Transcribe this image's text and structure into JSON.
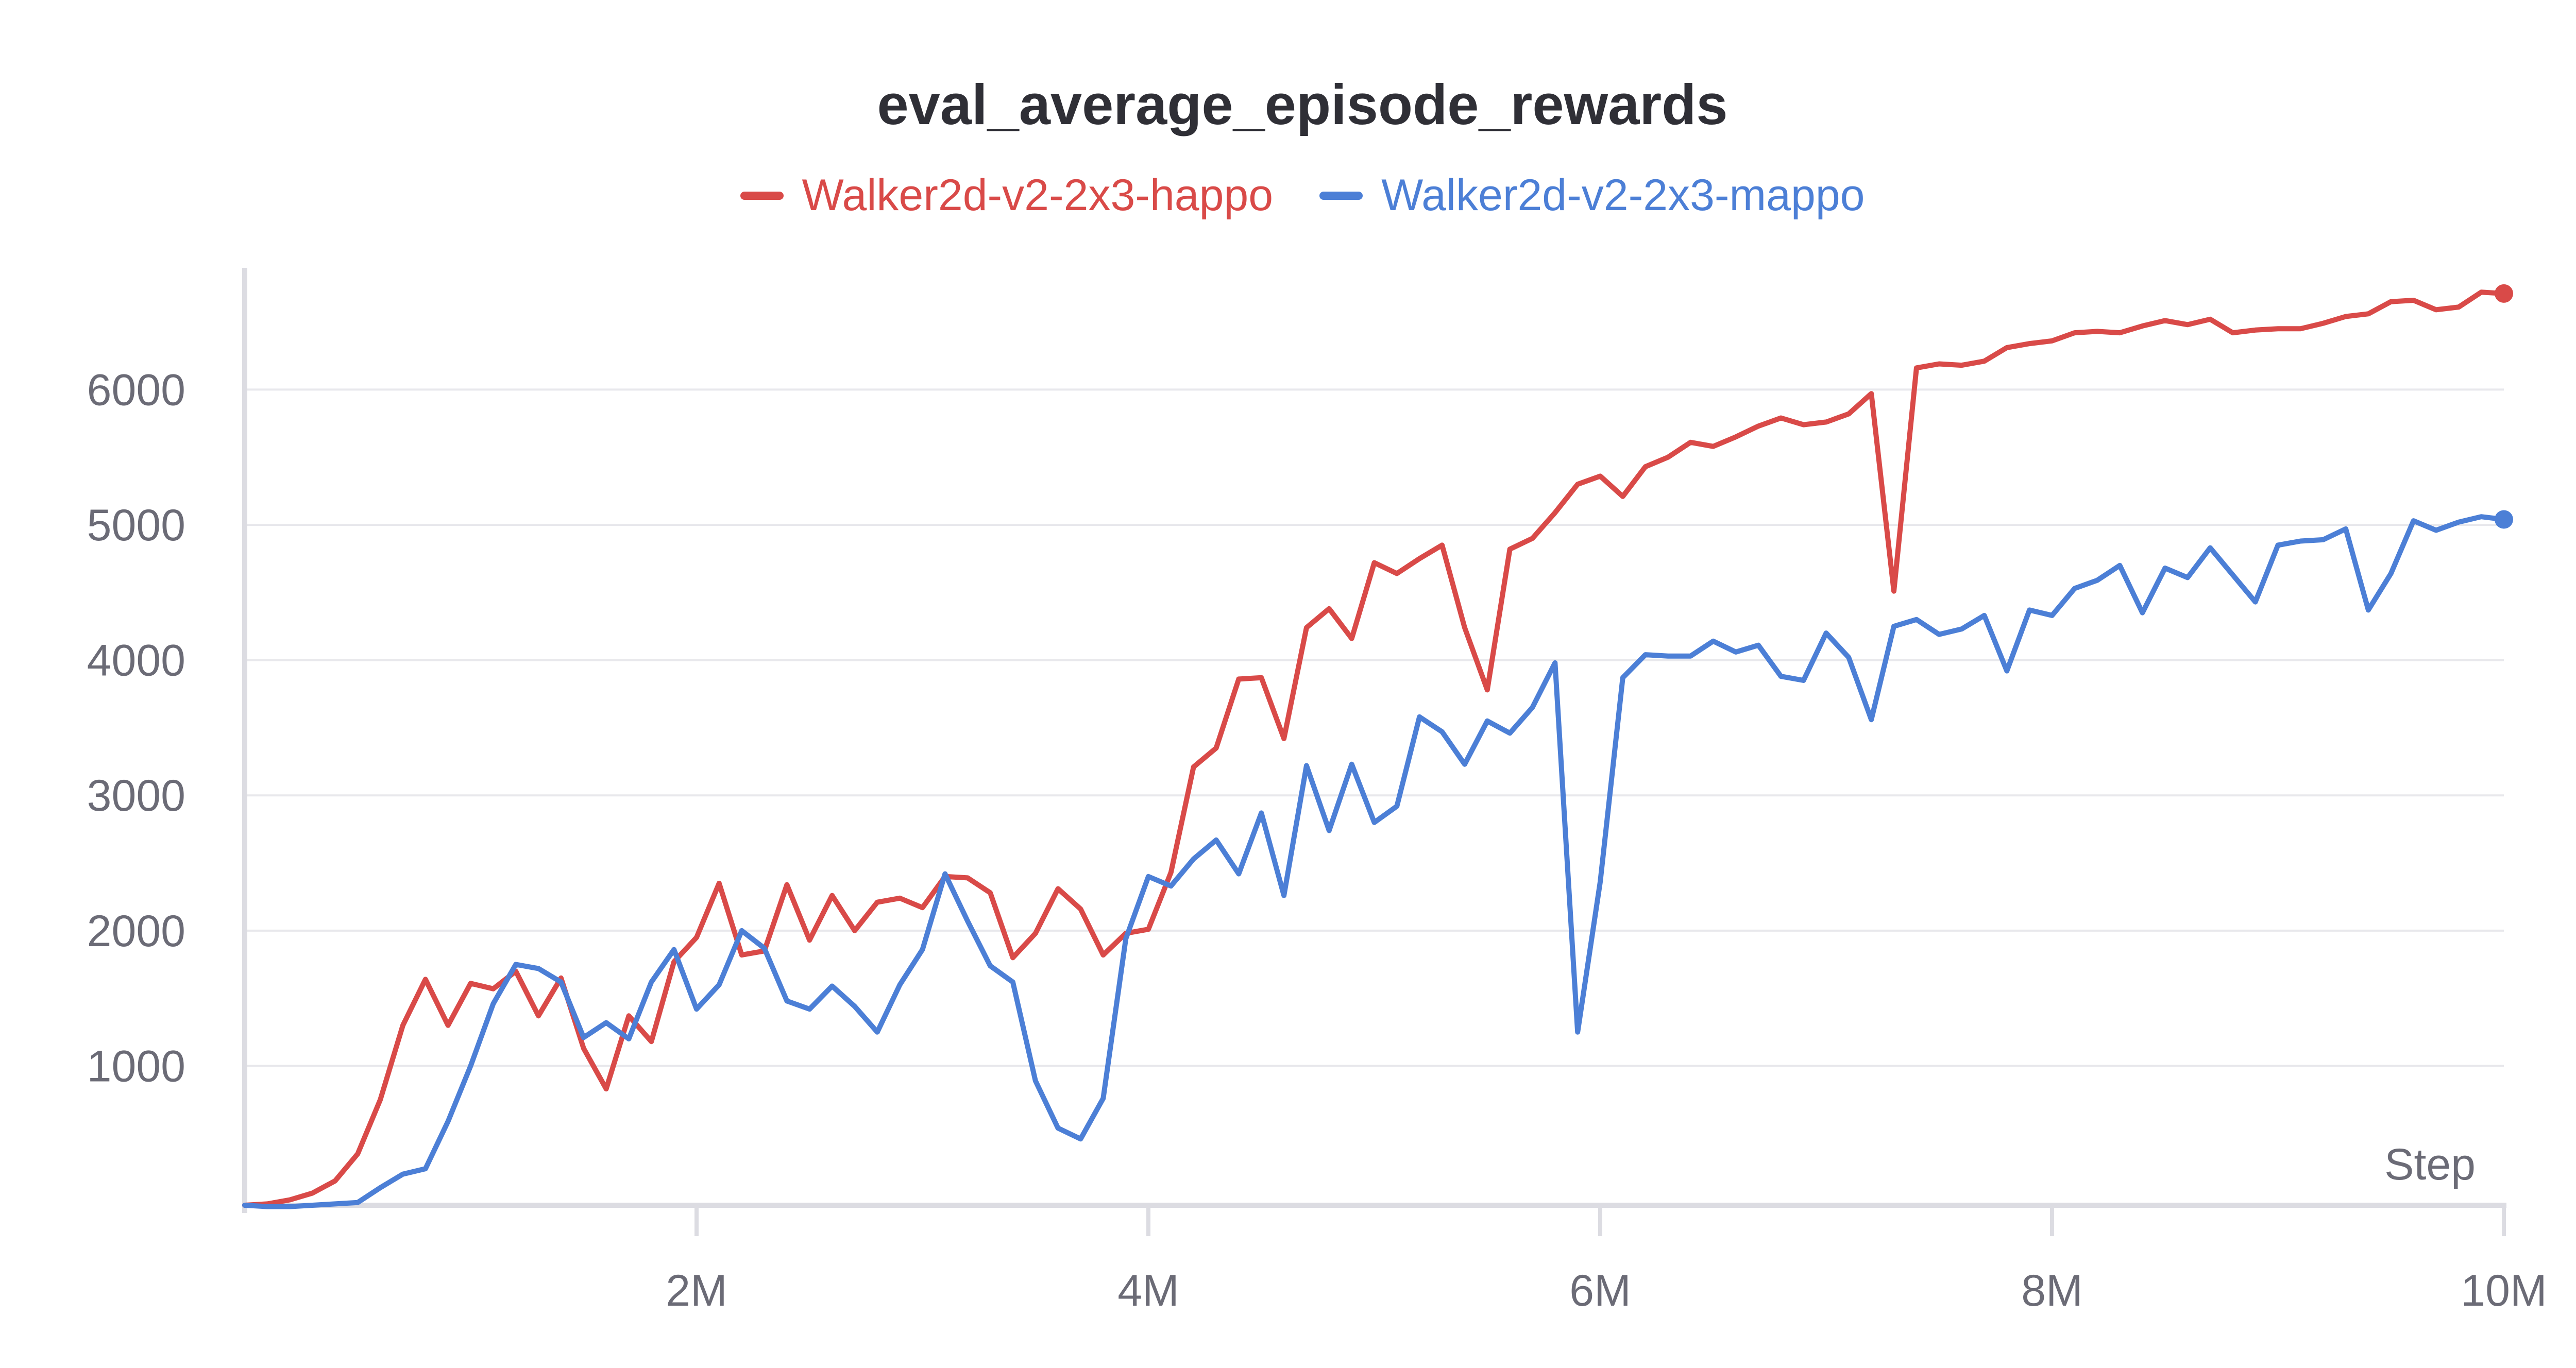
{
  "chart_data": {
    "type": "line",
    "title": "eval_average_episode_rewards",
    "xlabel": "Step",
    "ylabel": "",
    "xlim": [
      0,
      10000000
    ],
    "ylim": [
      -30,
      6900
    ],
    "x_ticks": [
      2000000,
      4000000,
      6000000,
      8000000,
      10000000
    ],
    "x_tick_labels": [
      "2M",
      "4M",
      "6M",
      "8M",
      "10M"
    ],
    "y_ticks": [
      1000,
      2000,
      3000,
      4000,
      5000,
      6000
    ],
    "y_tick_labels": [
      "1000",
      "2000",
      "3000",
      "4000",
      "5000",
      "6000"
    ],
    "grid": "horizontal",
    "legend": "top-center",
    "x": [
      0,
      100000,
      200000,
      300000,
      400000,
      500000,
      600000,
      700000,
      800000,
      900000,
      1000000,
      1100000,
      1200000,
      1300000,
      1400000,
      1500000,
      1600000,
      1700000,
      1800000,
      1900000,
      2000000,
      2100000,
      2200000,
      2300000,
      2400000,
      2500000,
      2600000,
      2700000,
      2800000,
      2900000,
      3000000,
      3100000,
      3200000,
      3300000,
      3400000,
      3500000,
      3600000,
      3700000,
      3800000,
      3900000,
      4000000,
      4100000,
      4200000,
      4300000,
      4400000,
      4500000,
      4600000,
      4700000,
      4800000,
      4900000,
      5000000,
      5100000,
      5200000,
      5300000,
      5400000,
      5500000,
      5600000,
      5700000,
      5800000,
      5900000,
      6000000,
      6100000,
      6200000,
      6300000,
      6400000,
      6500000,
      6600000,
      6700000,
      6800000,
      6900000,
      7000000,
      7100000,
      7200000,
      7300000,
      7400000,
      7500000,
      7600000,
      7700000,
      7800000,
      7900000,
      8000000,
      8100000,
      8200000,
      8300000,
      8400000,
      8500000,
      8600000,
      8700000,
      8800000,
      8900000,
      9000000,
      9100000,
      9200000,
      9300000,
      9400000,
      9500000,
      9600000,
      9700000,
      9800000,
      9900000,
      10000000
    ],
    "series": [
      {
        "name": "Walker2d-v2-2x3-happo",
        "color": "#d94a48",
        "values": [
          -30,
          -20,
          10,
          60,
          150,
          350,
          750,
          1300,
          1640,
          1300,
          1610,
          1570,
          1700,
          1370,
          1650,
          1130,
          830,
          1370,
          1180,
          1770,
          1950,
          2350,
          1820,
          1850,
          2340,
          1930,
          2260,
          2000,
          2210,
          2240,
          2170,
          2400,
          2390,
          2280,
          1800,
          1980,
          2310,
          2160,
          1820,
          1980,
          2010,
          2430,
          3210,
          3350,
          3860,
          3870,
          3420,
          4240,
          4380,
          4160,
          4720,
          4640,
          4750,
          4850,
          4240,
          3780,
          4820,
          4900,
          5090,
          5300,
          5360,
          5210,
          5430,
          5500,
          5610,
          5580,
          5650,
          5730,
          5790,
          5740,
          5760,
          5820,
          5970,
          4510,
          6160,
          6190,
          6180,
          6210,
          6310,
          6340,
          6360,
          6420,
          6430,
          6420,
          6470,
          6510,
          6480,
          6520,
          6420,
          6440,
          6450,
          6450,
          6490,
          6540,
          6560,
          6650,
          6660,
          6590,
          6610,
          6720,
          6710
        ]
      },
      {
        "name": "Walker2d-v2-2x3-mappo",
        "color": "#4c7fd6",
        "values": [
          -30,
          -40,
          -40,
          -30,
          -20,
          -10,
          100,
          200,
          240,
          590,
          1000,
          1460,
          1750,
          1720,
          1620,
          1210,
          1320,
          1200,
          1620,
          1860,
          1420,
          1600,
          2000,
          1870,
          1480,
          1420,
          1590,
          1440,
          1250,
          1600,
          1860,
          2420,
          2070,
          1740,
          1620,
          890,
          540,
          460,
          760,
          1940,
          2400,
          2330,
          2530,
          2670,
          2420,
          2870,
          2260,
          3220,
          2740,
          3230,
          2800,
          2920,
          3580,
          3470,
          3230,
          3550,
          3460,
          3650,
          3980,
          1250,
          2360,
          3870,
          4040,
          4030,
          4030,
          4140,
          4060,
          4110,
          3880,
          3850,
          4200,
          4020,
          3560,
          4250,
          4300,
          4190,
          4230,
          4330,
          3920,
          4370,
          4330,
          4530,
          4590,
          4700,
          4350,
          4680,
          4610,
          4830,
          4630,
          4430,
          4850,
          4880,
          4890,
          4970,
          4370,
          4640,
          5030,
          4960,
          5020,
          5060,
          5040
        ]
      }
    ]
  }
}
